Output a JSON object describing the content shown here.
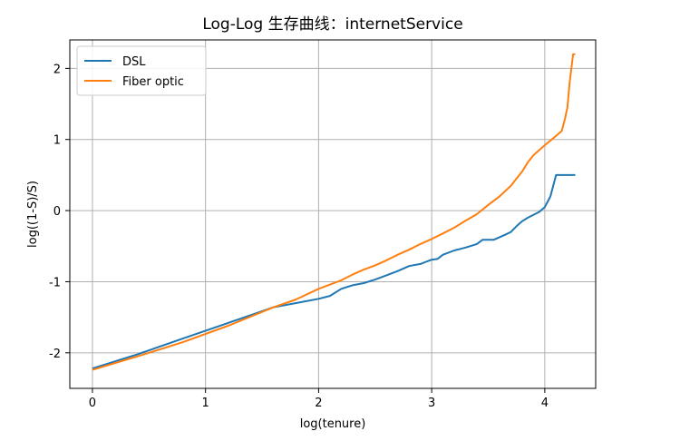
{
  "chart_data": {
    "type": "line",
    "title": "Log-Log 生存曲线：internetService",
    "xlabel": "log(tenure)",
    "ylabel": "log((1-S)/S)",
    "xlim": [
      -0.2,
      4.45
    ],
    "ylim": [
      -2.5,
      2.4
    ],
    "xticks": [
      0,
      1,
      2,
      3,
      4
    ],
    "yticks": [
      -2,
      -1,
      0,
      1,
      2
    ],
    "grid": true,
    "legend_position": "top-left",
    "series": [
      {
        "name": "DSL",
        "color": "#1f77b4",
        "points": [
          [
            0,
            -2.22
          ],
          [
            0.4,
            -2.02
          ],
          [
            0.8,
            -1.8
          ],
          [
            1.2,
            -1.58
          ],
          [
            1.6,
            -1.36
          ],
          [
            1.8,
            -1.3
          ],
          [
            2.0,
            -1.24
          ],
          [
            2.1,
            -1.2
          ],
          [
            2.2,
            -1.1
          ],
          [
            2.3,
            -1.05
          ],
          [
            2.4,
            -1.02
          ],
          [
            2.5,
            -0.97
          ],
          [
            2.6,
            -0.91
          ],
          [
            2.7,
            -0.85
          ],
          [
            2.8,
            -0.78
          ],
          [
            2.9,
            -0.75
          ],
          [
            2.95,
            -0.72
          ],
          [
            3.0,
            -0.69
          ],
          [
            3.05,
            -0.68
          ],
          [
            3.1,
            -0.62
          ],
          [
            3.2,
            -0.56
          ],
          [
            3.3,
            -0.52
          ],
          [
            3.4,
            -0.47
          ],
          [
            3.45,
            -0.41
          ],
          [
            3.55,
            -0.41
          ],
          [
            3.65,
            -0.34
          ],
          [
            3.7,
            -0.3
          ],
          [
            3.75,
            -0.22
          ],
          [
            3.8,
            -0.15
          ],
          [
            3.85,
            -0.1
          ],
          [
            3.95,
            -0.02
          ],
          [
            4.0,
            0.05
          ],
          [
            4.05,
            0.2
          ],
          [
            4.1,
            0.5
          ],
          [
            4.27,
            0.5
          ]
        ]
      },
      {
        "name": "Fiber optic",
        "color": "#ff7f0e",
        "points": [
          [
            0,
            -2.24
          ],
          [
            0.4,
            -2.05
          ],
          [
            0.8,
            -1.85
          ],
          [
            1.2,
            -1.62
          ],
          [
            1.6,
            -1.36
          ],
          [
            1.8,
            -1.25
          ],
          [
            2.0,
            -1.1
          ],
          [
            2.2,
            -0.98
          ],
          [
            2.3,
            -0.9
          ],
          [
            2.4,
            -0.83
          ],
          [
            2.5,
            -0.77
          ],
          [
            2.6,
            -0.7
          ],
          [
            2.7,
            -0.62
          ],
          [
            2.8,
            -0.55
          ],
          [
            2.9,
            -0.47
          ],
          [
            3.0,
            -0.4
          ],
          [
            3.1,
            -0.32
          ],
          [
            3.2,
            -0.24
          ],
          [
            3.3,
            -0.14
          ],
          [
            3.4,
            -0.05
          ],
          [
            3.5,
            0.08
          ],
          [
            3.6,
            0.2
          ],
          [
            3.7,
            0.35
          ],
          [
            3.75,
            0.45
          ],
          [
            3.8,
            0.55
          ],
          [
            3.85,
            0.68
          ],
          [
            3.9,
            0.78
          ],
          [
            4.0,
            0.92
          ],
          [
            4.1,
            1.05
          ],
          [
            4.15,
            1.12
          ],
          [
            4.18,
            1.3
          ],
          [
            4.2,
            1.45
          ],
          [
            4.22,
            1.8
          ],
          [
            4.25,
            2.2
          ],
          [
            4.27,
            2.2
          ]
        ]
      }
    ]
  }
}
